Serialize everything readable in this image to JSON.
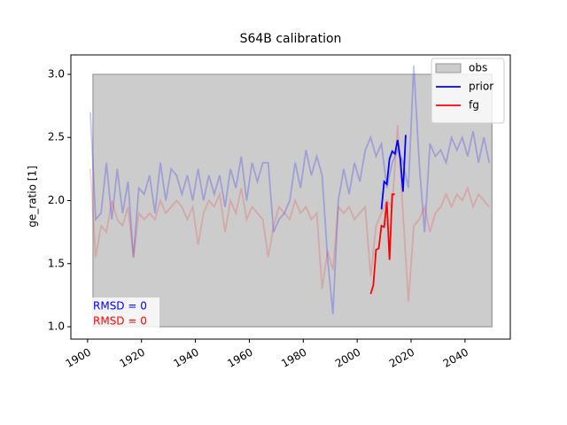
{
  "chart_data": {
    "type": "line",
    "title": "S64B calibration",
    "ylabel": "ge_ratio [1]",
    "xlim": [
      1893.8,
      2056.8
    ],
    "ylim": [
      0.902,
      3.154
    ],
    "xticks": [
      1900,
      1920,
      1940,
      1960,
      1980,
      2000,
      2020,
      2040
    ],
    "yticks": [
      {
        "value": 1,
        "label": "1.0"
      },
      {
        "value": 1.5,
        "label": "1.5"
      },
      {
        "value": 2,
        "label": "2.0"
      },
      {
        "value": 2.5,
        "label": "2.5"
      },
      {
        "value": 3,
        "label": "3.0"
      }
    ],
    "legend": "upper right",
    "series": [
      {
        "name": "obs",
        "color": "#cccccc",
        "kind": "band",
        "x": [
          1902,
          2050
        ],
        "lower": [
          1,
          1
        ],
        "upper": [
          3,
          3
        ]
      },
      {
        "color": "#0000ff",
        "alpha": 0.22,
        "x": [
          1901,
          1903,
          1905,
          1907,
          1909,
          1911,
          1913,
          1915,
          1917,
          1919,
          1921,
          1923,
          1925,
          1927,
          1929,
          1931,
          1933,
          1935,
          1937,
          1939,
          1941,
          1943,
          1945,
          1947,
          1949,
          1951,
          1953,
          1955,
          1957,
          1959,
          1961,
          1963,
          1965,
          1967,
          1969,
          1971,
          1973,
          1975,
          1977,
          1979,
          1981,
          1983,
          1985,
          1987,
          1989,
          1991,
          1993,
          1995,
          1997,
          1999,
          2001,
          2003,
          2005,
          2007,
          2009,
          2011,
          2013,
          2015,
          2017,
          2019,
          2021,
          2023,
          2025,
          2027,
          2029,
          2031,
          2033,
          2035,
          2037,
          2039,
          2041,
          2043,
          2045,
          2047,
          2049
        ],
        "values": [
          2.7,
          1.85,
          1.9,
          2.3,
          1.85,
          2.25,
          1.9,
          2.15,
          1.55,
          2.1,
          2.05,
          2.2,
          1.9,
          2.3,
          2.0,
          2.25,
          2.2,
          2.05,
          2.2,
          2.0,
          2.25,
          2.0,
          2.2,
          2.05,
          2.2,
          1.95,
          2.25,
          2.1,
          2.35,
          2.0,
          2.3,
          2.15,
          2.3,
          2.3,
          1.75,
          1.85,
          1.9,
          2.0,
          2.3,
          2.1,
          2.4,
          2.2,
          2.35,
          2.2,
          1.55,
          1.1,
          2.0,
          2.25,
          2.05,
          2.3,
          2.15,
          2.4,
          2.5,
          2.35,
          2.45,
          2.1,
          2.3,
          2.4,
          2.3,
          2.1,
          3.07,
          2.3,
          1.75,
          2.45,
          2.35,
          2.4,
          2.3,
          2.5,
          2.4,
          2.5,
          2.35,
          2.55,
          2.3,
          2.5,
          2.3
        ]
      },
      {
        "color": "#ff0000",
        "alpha": 0.18,
        "x": [
          1901,
          1903,
          1905,
          1907,
          1909,
          1911,
          1913,
          1915,
          1917,
          1919,
          1921,
          1923,
          1925,
          1927,
          1929,
          1931,
          1933,
          1935,
          1937,
          1939,
          1941,
          1943,
          1945,
          1947,
          1949,
          1951,
          1953,
          1955,
          1957,
          1959,
          1961,
          1963,
          1965,
          1967,
          1969,
          1971,
          1973,
          1975,
          1977,
          1979,
          1981,
          1983,
          1985,
          1987,
          1989,
          1991,
          1993,
          1995,
          1997,
          1999,
          2001,
          2003,
          2005,
          2007,
          2009,
          2011,
          2013,
          2015,
          2017,
          2019,
          2021,
          2023,
          2025,
          2027,
          2029,
          2031,
          2033,
          2035,
          2037,
          2039,
          2041,
          2043,
          2045,
          2047,
          2049
        ],
        "values": [
          2.25,
          1.55,
          1.8,
          1.75,
          2.0,
          1.85,
          1.8,
          1.95,
          1.55,
          1.9,
          1.85,
          1.9,
          1.85,
          2.0,
          1.9,
          1.95,
          2.0,
          1.95,
          1.85,
          1.95,
          1.65,
          1.9,
          2.0,
          1.95,
          2.05,
          1.75,
          2.0,
          1.9,
          2.1,
          1.85,
          1.95,
          1.9,
          1.85,
          1.55,
          1.8,
          1.95,
          1.9,
          1.85,
          2.0,
          1.9,
          1.95,
          1.85,
          1.9,
          1.3,
          1.6,
          1.45,
          1.95,
          1.9,
          1.95,
          1.85,
          1.9,
          1.95,
          1.4,
          1.8,
          1.9,
          2.0,
          1.95,
          2.6,
          1.9,
          1.2,
          1.8,
          1.85,
          1.95,
          1.75,
          1.9,
          1.95,
          2.05,
          1.95,
          2.05,
          2.0,
          2.1,
          1.95,
          2.05,
          2.0,
          1.95
        ]
      },
      {
        "name": "prior",
        "color": "#0000ff",
        "x": [
          2009,
          2010,
          2011,
          2012,
          2013,
          2014,
          2015,
          2016,
          2017,
          2018
        ],
        "values": [
          1.93,
          2.15,
          2.13,
          2.33,
          2.39,
          2.37,
          2.48,
          2.33,
          2.07,
          2.52
        ]
      },
      {
        "name": "fg",
        "color": "#ff0000",
        "x": [
          2005,
          2006,
          2007,
          2008,
          2009,
          2010,
          2011,
          2012,
          2013,
          2014
        ],
        "values": [
          1.26,
          1.33,
          1.61,
          1.62,
          1.8,
          1.79,
          1.99,
          1.53,
          2.05,
          2.05
        ]
      }
    ],
    "annotations": [
      {
        "text": "RMSD = 0",
        "color": "#0000ff"
      },
      {
        "text": "RMSD = 0",
        "color": "#ff0000"
      }
    ]
  }
}
